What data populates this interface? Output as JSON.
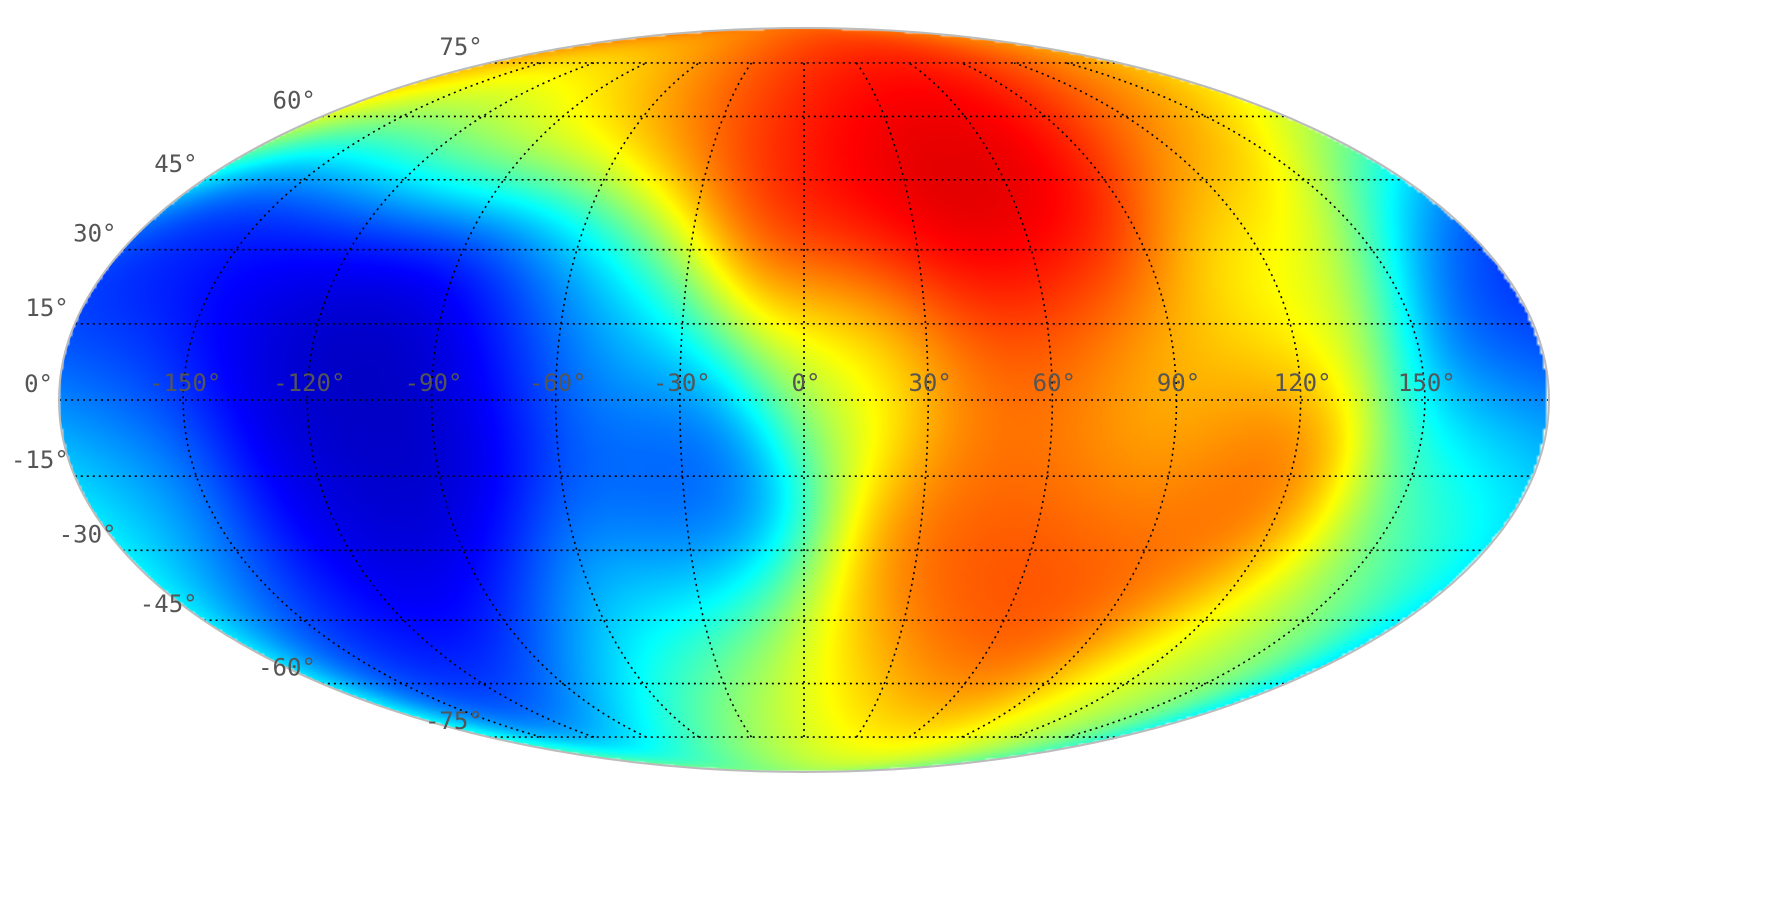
{
  "map": {
    "projection": "mollweide",
    "colormap": "jet",
    "graticule": {
      "lon_step": 30,
      "lat_step": 15,
      "line_style": "dotted",
      "line_color": "#000000"
    },
    "lat_labels": {
      "75": "75°",
      "60": "60°",
      "45": "45°",
      "30": "30°",
      "15": "15°",
      "0": "0°",
      "-15": "-15°",
      "-30": "-30°",
      "-45": "-45°",
      "-60": "-60°",
      "-75": "-75°"
    },
    "lon_labels": {
      "-150": "-150°",
      "-120": "-120°",
      "-90": "-90°",
      "-60": "-60°",
      "-30": "-30°",
      "0": "0°",
      "30": "30°",
      "60": "60°",
      "90": "90°",
      "120": "120°",
      "150": "150°"
    },
    "field_blobs": [
      {
        "lon": 35,
        "lat": 38,
        "level": 0.98
      },
      {
        "lon": 55,
        "lat": 52,
        "level": 0.95
      },
      {
        "lon": -5,
        "lat": 48,
        "level": 0.88
      },
      {
        "lon": 15,
        "lat": 58,
        "level": 0.86
      },
      {
        "lon": 80,
        "lat": 62,
        "level": 0.85
      },
      {
        "lon": 65,
        "lat": 18,
        "level": 0.84
      },
      {
        "lon": 70,
        "lat": -30,
        "level": 0.84
      },
      {
        "lon": 105,
        "lat": -18,
        "level": 0.86
      },
      {
        "lon": 45,
        "lat": -40,
        "level": 0.8
      },
      {
        "lon": 50,
        "lat": -5,
        "level": 0.76
      },
      {
        "lon": 140,
        "lat": 55,
        "level": 0.7
      },
      {
        "lon": -40,
        "lat": 62,
        "level": 0.72
      },
      {
        "lon": -110,
        "lat": 60,
        "level": 0.6
      },
      {
        "lon": -100,
        "lat": 8,
        "level": 0.02
      },
      {
        "lon": -150,
        "lat": 18,
        "level": 0.1
      },
      {
        "lon": -125,
        "lat": 20,
        "level": 0.06
      },
      {
        "lon": -75,
        "lat": 12,
        "level": 0.12
      },
      {
        "lon": -95,
        "lat": -35,
        "level": 0.03
      },
      {
        "lon": -115,
        "lat": -15,
        "level": 0.1
      },
      {
        "lon": -140,
        "lat": -45,
        "level": 0.16
      },
      {
        "lon": -30,
        "lat": -22,
        "level": 0.18
      },
      {
        "lon": 175,
        "lat": 20,
        "level": 0.12
      },
      {
        "lon": -170,
        "lat": 5,
        "level": 0.2
      },
      {
        "lon": -170,
        "lat": -15,
        "level": 0.36
      },
      {
        "lon": -50,
        "lat": 20,
        "level": 0.34
      },
      {
        "lon": -60,
        "lat": -50,
        "level": 0.4
      },
      {
        "lon": 0,
        "lat": -60,
        "level": 0.62
      },
      {
        "lon": 15,
        "lat": 10,
        "level": 0.55
      },
      {
        "lon": 120,
        "lat": 25,
        "level": 0.6
      },
      {
        "lon": 165,
        "lat": -20,
        "level": 0.45
      },
      {
        "lon": 85,
        "lat": -5,
        "level": 0.58
      },
      {
        "lon": 130,
        "lat": -50,
        "level": 0.55
      }
    ]
  }
}
